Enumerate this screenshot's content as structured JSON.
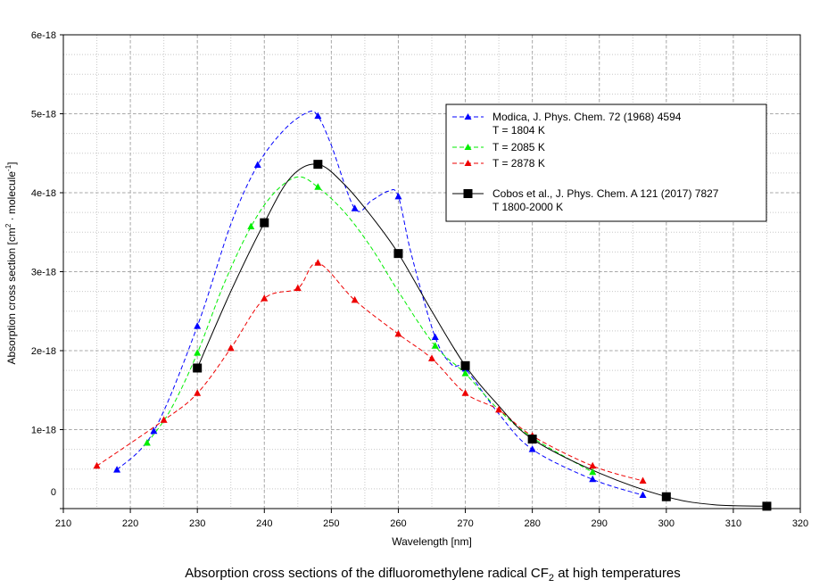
{
  "chart_data": {
    "type": "line",
    "title": "",
    "caption_prefix": "Absorption cross sections of the difluoromethylene radical CF",
    "caption_subscript": "2",
    "caption_suffix": " at high temperatures",
    "xlabel": "Wavelength [nm]",
    "ylabel_prefix": "Absorption cross section [cm",
    "ylabel_sup1": "2",
    "ylabel_mid": " · molecule",
    "ylabel_sup2": "-1",
    "ylabel_suffix": "]",
    "xlim": [
      210,
      320
    ],
    "ylim": [
      0,
      6e-18
    ],
    "grid": true,
    "legend_position": "top-right",
    "x_ticks": [
      210,
      220,
      230,
      240,
      250,
      260,
      270,
      280,
      290,
      300,
      310,
      320
    ],
    "x_tick_labels": [
      "210",
      "220",
      "230",
      "240",
      "250",
      "260",
      "270",
      "280",
      "290",
      "300",
      "310",
      "320"
    ],
    "y_ticks": [
      0,
      1e-18,
      2e-18,
      3e-18,
      4e-18,
      5e-18,
      6e-18
    ],
    "y_tick_labels": [
      "0",
      "1e-18",
      "2e-18",
      "3e-18",
      "4e-18",
      "5e-18",
      "6e-18"
    ],
    "series": [
      {
        "name": "Modica, J. Phys. Chem. 72 (1968) 4594",
        "name_line2": "T = 1804 K",
        "color": "#0000ff",
        "marker": "triangle",
        "line_style": "dashed",
        "x": [
          218,
          223.5,
          230,
          239,
          248,
          253.5,
          260,
          265.5,
          270,
          280,
          289,
          296.5
        ],
        "y": [
          4.9e-19,
          9.8e-19,
          2.31e-18,
          4.35e-18,
          4.97e-18,
          3.8e-18,
          3.95e-18,
          2.17e-18,
          1.77e-18,
          7.5e-19,
          3.7e-19,
          1.7e-19
        ],
        "curve_x": [
          218,
          223.5,
          230,
          235,
          239,
          243,
          246.5,
          248,
          250,
          253.5,
          256,
          258.5,
          260,
          262,
          265.5,
          268,
          270,
          275,
          280,
          289,
          296.5
        ],
        "curve_y": [
          4.9e-19,
          9.8e-19,
          2.31e-18,
          3.6e-18,
          4.35e-18,
          4.8e-18,
          5.02e-18,
          4.97e-18,
          4.6e-18,
          3.8e-18,
          3.9e-18,
          4.02e-18,
          3.95e-18,
          3.2e-18,
          2.17e-18,
          1.82e-18,
          1.77e-18,
          1.2e-18,
          7.5e-19,
          3.7e-19,
          1.7e-19
        ]
      },
      {
        "name": "T = 2085 K",
        "color": "#00ee00",
        "marker": "triangle",
        "line_style": "dashed",
        "x": [
          222.5,
          230,
          238,
          248,
          265.5,
          270,
          280,
          289
        ],
        "y": [
          8.3e-19,
          1.97e-18,
          3.57e-18,
          4.07e-18,
          2.06e-18,
          1.71e-18,
          9e-19,
          4.6e-19
        ],
        "curve_x": [
          222.5,
          226,
          230,
          234,
          238,
          241.5,
          245,
          248,
          252,
          256,
          260,
          265.5,
          270,
          275,
          280,
          289
        ],
        "curve_y": [
          8.3e-19,
          1.25e-18,
          1.97e-18,
          2.85e-18,
          3.57e-18,
          4e-18,
          4.2e-18,
          4.07e-18,
          3.75e-18,
          3.3e-18,
          2.75e-18,
          2.06e-18,
          1.71e-18,
          1.25e-18,
          9e-19,
          4.6e-19
        ]
      },
      {
        "name": "T = 2878 K",
        "color": "#ee0000",
        "marker": "triangle",
        "line_style": "dashed",
        "x": [
          215,
          225,
          230,
          235,
          240,
          245,
          248,
          253.5,
          260,
          265,
          270,
          275,
          280,
          289,
          296.5
        ],
        "y": [
          5.4e-19,
          1.12e-18,
          1.46e-18,
          2.03e-18,
          2.66e-18,
          2.79e-18,
          3.11e-18,
          2.64e-18,
          2.21e-18,
          1.9e-18,
          1.46e-18,
          1.25e-18,
          9.2e-19,
          5.4e-19,
          3.5e-19
        ],
        "curve_x": [
          215,
          225,
          230,
          235,
          240,
          245,
          248,
          253.5,
          260,
          265,
          270,
          275,
          280,
          289,
          296.5
        ],
        "curve_y": [
          5.4e-19,
          1.12e-18,
          1.46e-18,
          2.03e-18,
          2.66e-18,
          2.79e-18,
          3.11e-18,
          2.64e-18,
          2.21e-18,
          1.9e-18,
          1.46e-18,
          1.25e-18,
          9.2e-19,
          5.4e-19,
          3.5e-19
        ]
      },
      {
        "name": "Cobos et al., J. Phys. Chem. A 121 (2017) 7827",
        "name_line2": "T 1800-2000 K",
        "color": "#000000",
        "marker": "square",
        "line_style": "solid",
        "x": [
          230,
          240,
          248,
          260,
          270,
          280,
          300,
          315
        ],
        "y": [
          1.78e-18,
          3.62e-18,
          4.36e-18,
          3.23e-18,
          1.81e-18,
          8.8e-19,
          1.5e-19,
          3e-20
        ],
        "curve_x": [
          230,
          235,
          240,
          244,
          248,
          252,
          256,
          260,
          265,
          270,
          275,
          280,
          290,
          300,
          307,
          315
        ],
        "curve_y": [
          1.78e-18,
          2.75e-18,
          3.62e-18,
          4.2e-18,
          4.36e-18,
          4.1e-18,
          3.7e-18,
          3.23e-18,
          2.5e-18,
          1.81e-18,
          1.3e-18,
          8.8e-19,
          4.5e-19,
          1.5e-19,
          5e-20,
          3e-20
        ]
      }
    ]
  }
}
